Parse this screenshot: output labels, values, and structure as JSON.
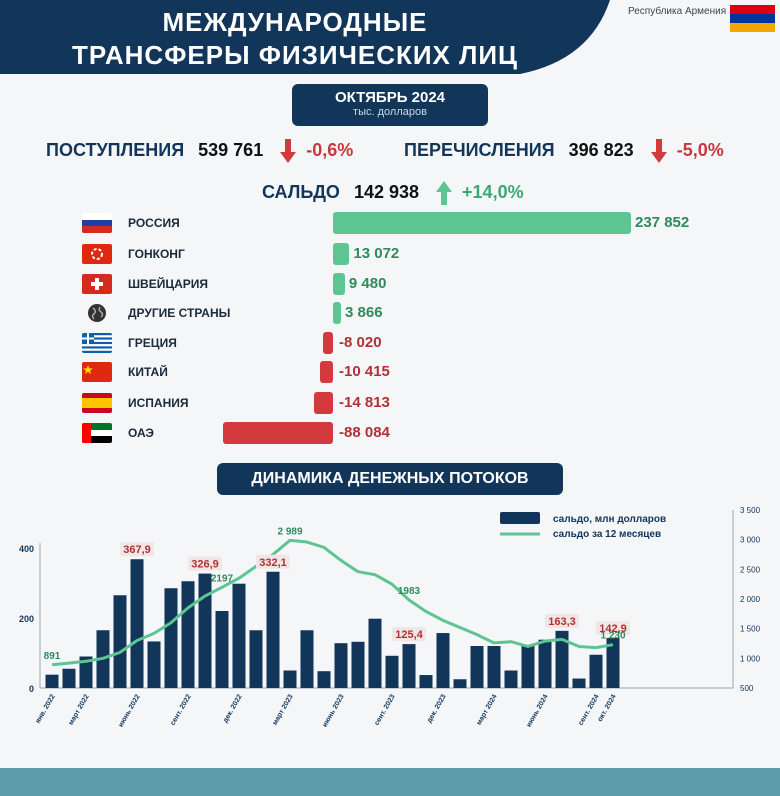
{
  "header": {
    "title_line1": "МЕЖДУНАРОДНЫЕ",
    "title_line2": "ТРАНСФЕРЫ ФИЗИЧЕСКИХ ЛИЦ",
    "country_label": "Республика Армения",
    "flag_colors": [
      "#d90012",
      "#0033a0",
      "#f2a800"
    ]
  },
  "period": {
    "title": "ОКТЯБРЬ 2024",
    "unit": "тыс. долларов"
  },
  "kpis": {
    "inflow": {
      "label": "ПОСТУПЛЕНИЯ",
      "value": "539 761",
      "change": "-0,6%"
    },
    "outflow": {
      "label": "ПЕРЕЧИСЛЕНИЯ",
      "value": "396 823",
      "change": "-5,0%"
    },
    "balance": {
      "label": "САЛЬДО",
      "value": "142 938",
      "change": "+14,0%"
    }
  },
  "colors": {
    "navy": "#12365a",
    "green": "#5cc592",
    "green_text": "#2f8a5c",
    "red": "#d23a3d",
    "red_text": "#b23034"
  },
  "countries": [
    {
      "name": "РОССИЯ",
      "value": 237852,
      "label": "237 852",
      "flag": "russia-flag-icon"
    },
    {
      "name": "ГОНКОНГ",
      "value": 13072,
      "label": "13 072",
      "flag": "hongkong-flag-icon"
    },
    {
      "name": "ШВЕЙЦАРИЯ",
      "value": 9480,
      "label": "9 480",
      "flag": "switzerland-flag-icon"
    },
    {
      "name": "ДРУГИЕ СТРАНЫ",
      "value": 3866,
      "label": "3 866",
      "flag": "globe-icon"
    },
    {
      "name": "ГРЕЦИЯ",
      "value": -8020,
      "label": "-8 020",
      "flag": "greece-flag-icon"
    },
    {
      "name": "КИТАЙ",
      "value": -10415,
      "label": "-10 415",
      "flag": "china-flag-icon"
    },
    {
      "name": "ИСПАНИЯ",
      "value": -14813,
      "label": "-14 813",
      "flag": "spain-flag-icon"
    },
    {
      "name": "ОАЭ",
      "value": -88084,
      "label": "-88 084",
      "flag": "uae-flag-icon"
    }
  ],
  "dynamics_title": "ДИНАМИКА ДЕНЕЖНЫХ ПОТОКОВ",
  "chart_data": {
    "type": "bar",
    "legend": {
      "bars": "сальдо, млн долларов",
      "line": "сальдо за 12 месяцев"
    },
    "left_axis": {
      "ticks": [
        0,
        200,
        400
      ],
      "lim": [
        0,
        400
      ]
    },
    "right_axis": {
      "ticks": [
        500,
        1000,
        1500,
        2000,
        2500,
        3000,
        3500
      ],
      "lim": [
        500,
        3500
      ]
    },
    "x_tick_labels": [
      {
        "index": 0,
        "label": "янв. 2022"
      },
      {
        "index": 2,
        "label": "март 2022"
      },
      {
        "index": 5,
        "label": "июнь 2022"
      },
      {
        "index": 8,
        "label": "сент. 2022"
      },
      {
        "index": 11,
        "label": "дек. 2022"
      },
      {
        "index": 14,
        "label": "март 2023"
      },
      {
        "index": 17,
        "label": "июнь 2023"
      },
      {
        "index": 20,
        "label": "сент. 2023"
      },
      {
        "index": 23,
        "label": "дек. 2023"
      },
      {
        "index": 26,
        "label": "март 2024"
      },
      {
        "index": 29,
        "label": "июнь 2024"
      },
      {
        "index": 32,
        "label": "сент. 2024"
      },
      {
        "index": 33,
        "label": "окт. 2024"
      }
    ],
    "series": [
      {
        "name": "сальдо, млн долларов",
        "type": "bar",
        "values": [
          38,
          55,
          90,
          165,
          265,
          367.9,
          133,
          285,
          305,
          326.9,
          220,
          298,
          165,
          332.1,
          50,
          165,
          48,
          128,
          132,
          198,
          92,
          125.4,
          37,
          157,
          25,
          120,
          120,
          50,
          122,
          138,
          163.3,
          27,
          95,
          142.9
        ]
      },
      {
        "name": "сальдо за 12 месяцев",
        "type": "line",
        "values": [
          891,
          920,
          950,
          1000,
          1100,
          1300,
          1420,
          1600,
          1850,
          2050,
          2197,
          2350,
          2550,
          2750,
          2989,
          2960,
          2870,
          2650,
          2460,
          2410,
          2250,
          1983,
          1790,
          1640,
          1520,
          1400,
          1260,
          1280,
          1200,
          1290,
          1320,
          1200,
          1180,
          1230
        ]
      }
    ],
    "bar_labels": [
      {
        "index": 5,
        "text": "367,9"
      },
      {
        "index": 9,
        "text": "326,9"
      },
      {
        "index": 13,
        "text": "332,1"
      },
      {
        "index": 21,
        "text": "125,4"
      },
      {
        "index": 30,
        "text": "163,3"
      },
      {
        "index": 33,
        "text": "142,9"
      }
    ],
    "line_labels": [
      {
        "index": 0,
        "text": "891"
      },
      {
        "index": 10,
        "text": "2197"
      },
      {
        "index": 14,
        "text": "2 989"
      },
      {
        "index": 21,
        "text": "1983"
      },
      {
        "index": 33,
        "text": "1 230"
      }
    ]
  }
}
